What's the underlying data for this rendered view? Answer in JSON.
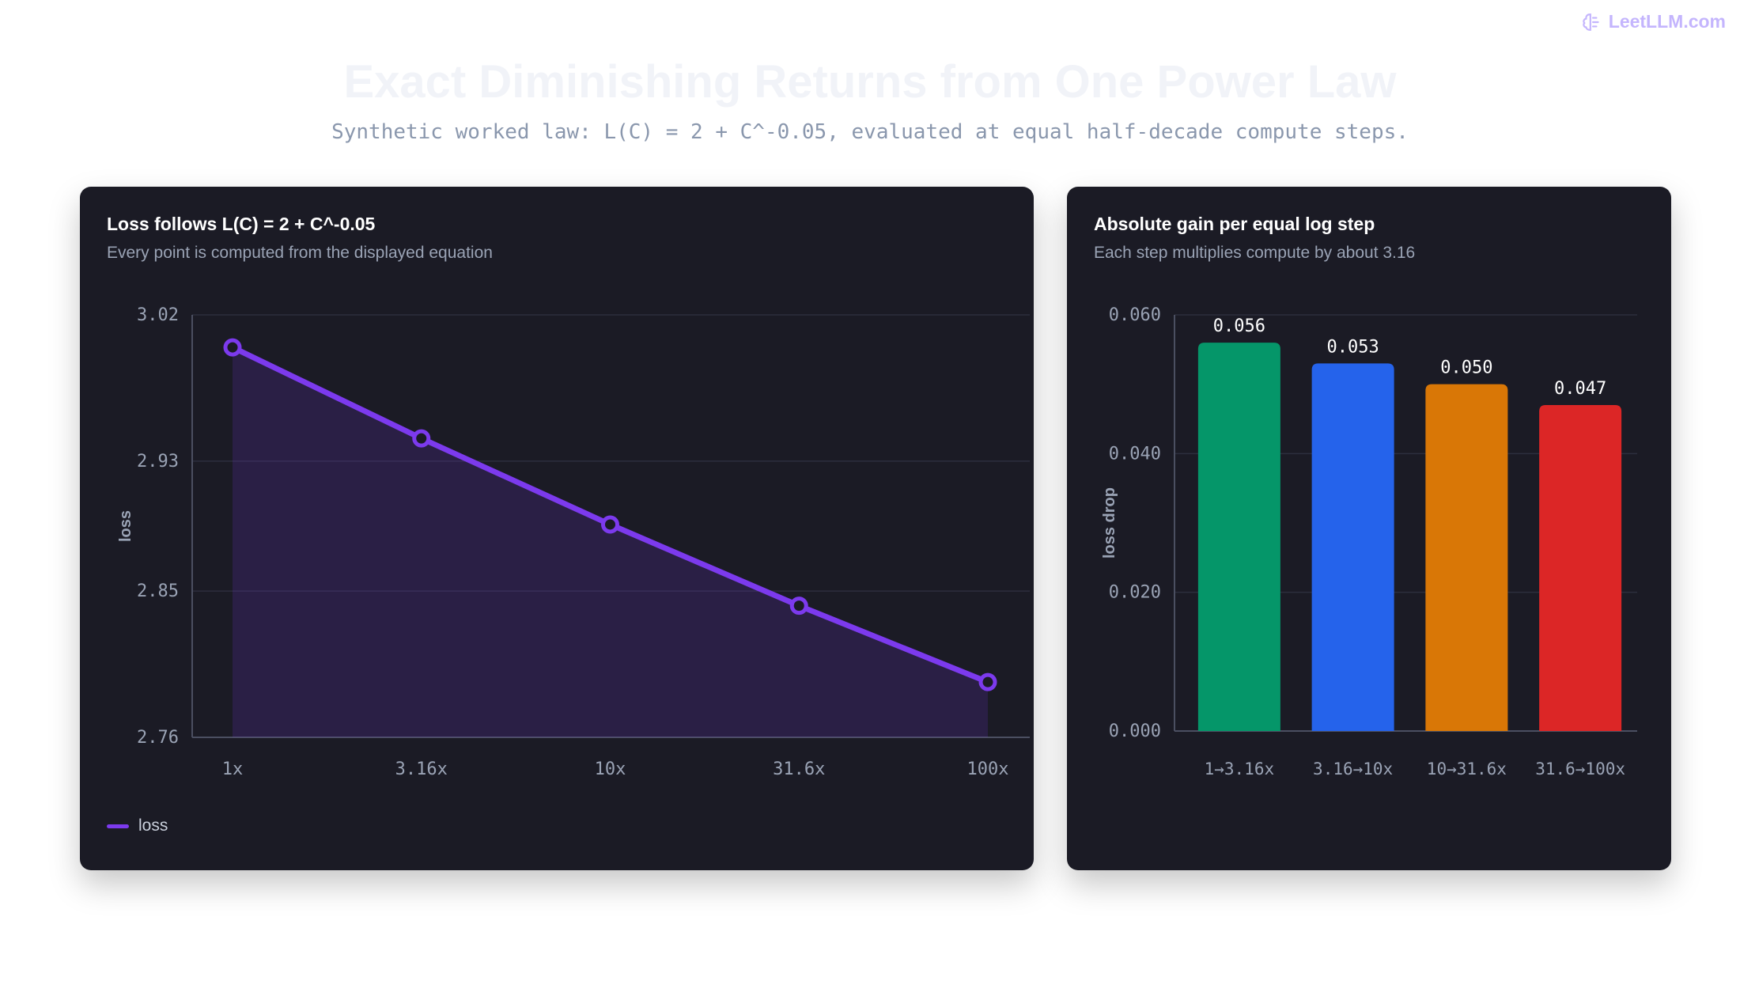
{
  "brand": {
    "text": "LeetLLM.com",
    "icon": "brain-icon",
    "color": "#c4b5fd"
  },
  "header": {
    "title": "Exact Diminishing Returns from One Power Law",
    "subtitle": "Synthetic worked law: L(C) = 2 + C^-0.05, evaluated at equal half-decade compute steps."
  },
  "chart_data": [
    {
      "type": "line",
      "title": "Loss follows L(C) = 2 + C^-0.05",
      "subtitle": "Every point is computed from the displayed equation",
      "xlabel": "",
      "ylabel": "loss",
      "categories": [
        "1x",
        "3.16x",
        "10x",
        "31.6x",
        "100x"
      ],
      "series": [
        {
          "name": "loss",
          "values": [
            3.0,
            2.944,
            2.891,
            2.841,
            2.794
          ],
          "color": "#7c3aed"
        }
      ],
      "ylim": [
        2.76,
        3.02
      ],
      "yticks": [
        "3.02",
        "2.93",
        "2.85",
        "2.76"
      ],
      "fill_under": true,
      "grid": true,
      "legend": "bottom-left"
    },
    {
      "type": "bar",
      "title": "Absolute gain per equal log step",
      "subtitle": "Each step multiplies compute by about 3.16",
      "xlabel": "",
      "ylabel": "loss drop",
      "categories": [
        "1→3.16x",
        "3.16→10x",
        "10→31.6x",
        "31.6→100x"
      ],
      "values": [
        0.056,
        0.053,
        0.05,
        0.047
      ],
      "value_labels": [
        "0.056",
        "0.053",
        "0.050",
        "0.047"
      ],
      "colors": [
        "#059669",
        "#2563eb",
        "#d97706",
        "#dc2626"
      ],
      "ylim": [
        0,
        0.06
      ],
      "yticks": [
        "0.060",
        "0.040",
        "0.020",
        "0.000"
      ],
      "grid": true
    }
  ]
}
